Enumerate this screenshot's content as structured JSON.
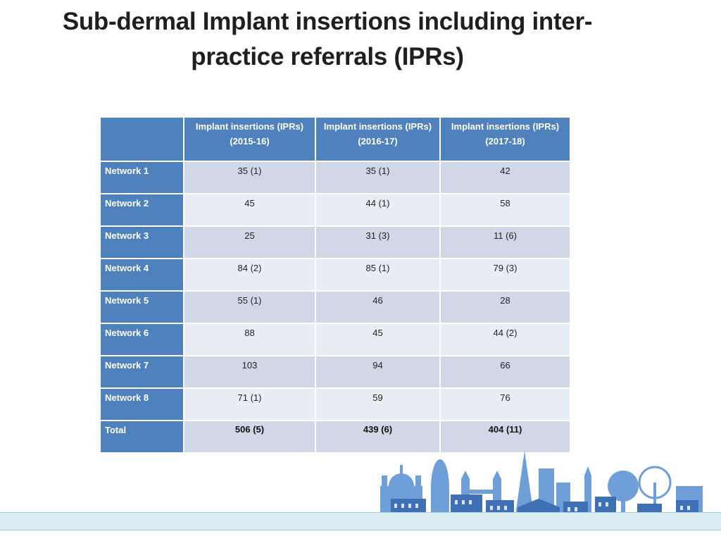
{
  "title": {
    "line1": "Sub-dermal Implant insertions including inter-",
    "line2": "practice referrals (IPRs)"
  },
  "table": {
    "columns": [
      {
        "line1": "Implant insertions (IPRs)",
        "line2": "(2015-16)"
      },
      {
        "line1": "Implant insertions (IPRs)",
        "line2": "(2016-17)"
      },
      {
        "line1": "Implant insertions (IPRs)",
        "line2": "(2017-18)"
      }
    ],
    "rows": [
      {
        "label": "Network 1",
        "values": [
          "35 (1)",
          "35 (1)",
          "42"
        ]
      },
      {
        "label": "Network 2",
        "values": [
          "45",
          "44 (1)",
          "58"
        ]
      },
      {
        "label": "Network 3",
        "values": [
          "25",
          "31 (3)",
          "11 (6)"
        ]
      },
      {
        "label": "Network 4",
        "values": [
          "84 (2)",
          "85 (1)",
          "79 (3)"
        ]
      },
      {
        "label": "Network 5",
        "values": [
          "55 (1)",
          "46",
          "28"
        ]
      },
      {
        "label": "Network 6",
        "values": [
          "88",
          "45",
          "44 (2)"
        ]
      },
      {
        "label": "Network 7",
        "values": [
          "103",
          "94",
          "66"
        ]
      },
      {
        "label": "Network 8",
        "values": [
          "71 (1)",
          "59",
          "76"
        ]
      }
    ],
    "total": {
      "label": "Total",
      "values": [
        "506 (5)",
        "439 (6)",
        "404 (11)"
      ]
    }
  },
  "colors": {
    "header_blue": "#4f81bd",
    "row_dark": "#d0d8e8",
    "row_light": "#e9edf4",
    "skyline_blue": "#5b8fd0",
    "footer_band": "#dbeef3"
  },
  "icons": {
    "skyline": "city-skyline-icon"
  }
}
